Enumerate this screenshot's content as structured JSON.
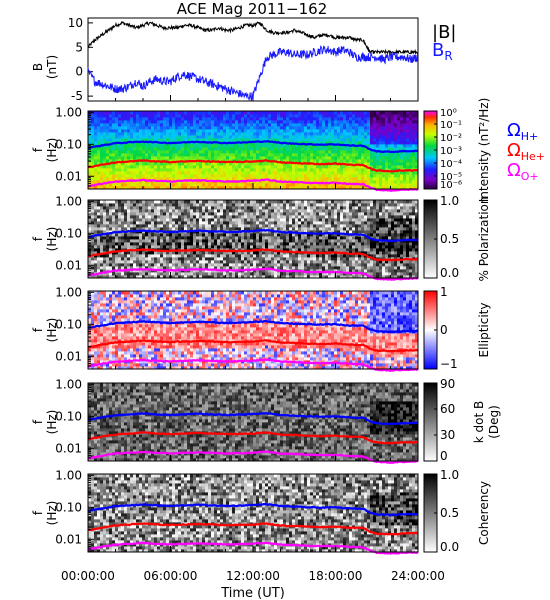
{
  "chart_data": {
    "type": "spectrogram-stack",
    "title": "ACE Mag 2011−162",
    "xlabel": "Time (UT)",
    "x_ticks": [
      "00:00:00",
      "06:00:00",
      "12:00:00",
      "18:00:00",
      "24:00:00"
    ],
    "x_range_hours": [
      0,
      24
    ],
    "field_panel": {
      "ylabel": "B",
      "yunit": "(nT)",
      "ylim": [
        -6,
        11
      ],
      "y_ticks": [
        -5,
        0,
        5,
        10
      ],
      "legend": [
        {
          "label": "|B|",
          "color": "#000000"
        },
        {
          "label": "B",
          "sub": "R",
          "color": "#1a1aff"
        }
      ],
      "series": [
        {
          "name": "|B|",
          "color": "#000000",
          "x": [
            0,
            0.5,
            1,
            1.5,
            2,
            2.5,
            3,
            3.5,
            4,
            4.5,
            5,
            5.5,
            6,
            6.5,
            7,
            7.5,
            8,
            8.5,
            9,
            9.5,
            10,
            10.5,
            11,
            11.5,
            12,
            12.5,
            13,
            13.5,
            14,
            14.5,
            15,
            15.5,
            16,
            16.5,
            17,
            17.5,
            18,
            18.5,
            19,
            19.5,
            20,
            20.3,
            20.5,
            21,
            21.5,
            22,
            22.5,
            23,
            23.5,
            24
          ],
          "y": [
            5,
            6.5,
            7.5,
            8.5,
            9.5,
            10,
            9.5,
            9,
            9.5,
            10,
            9.5,
            9,
            9,
            9,
            9.5,
            9.5,
            9,
            8.5,
            8.5,
            9,
            8.5,
            8.5,
            9,
            9.5,
            9.5,
            10,
            8.5,
            8,
            8,
            8,
            8.5,
            8,
            7.5,
            7,
            7.5,
            7.5,
            7,
            7,
            7,
            6.5,
            6.5,
            5,
            4,
            4,
            4,
            4,
            4,
            4,
            4,
            4
          ]
        },
        {
          "name": "B_R",
          "color": "#1a1aff",
          "x": [
            0,
            0.5,
            1,
            1.5,
            2,
            2.5,
            3,
            3.5,
            4,
            4.5,
            5,
            5.5,
            6,
            6.5,
            7,
            7.5,
            8,
            8.5,
            9,
            9.5,
            10,
            10.5,
            11,
            11.5,
            12,
            12.5,
            13,
            13.5,
            14,
            14.5,
            15,
            15.5,
            16,
            16.5,
            17,
            17.5,
            18,
            18.5,
            19,
            19.5,
            20,
            20.5,
            21,
            21.5,
            22,
            22.5,
            23,
            23.5,
            24
          ],
          "y": [
            0,
            -2,
            -2.5,
            -3,
            -3.5,
            -3.5,
            -3,
            -2,
            -3,
            -2,
            -1.5,
            -2,
            -2,
            -1,
            -0.5,
            -1,
            -1.5,
            -2,
            -2.5,
            -3,
            -3.5,
            -4,
            -4.5,
            -5,
            -5,
            -1,
            3,
            3.5,
            4,
            4,
            3.5,
            3.5,
            3.5,
            4,
            4.5,
            4.5,
            4,
            4.5,
            4,
            3,
            3,
            3,
            3,
            2.5,
            3,
            3,
            3,
            2.5,
            3
          ]
        }
      ]
    },
    "spectral_panels": [
      {
        "name": "Intensity",
        "colorbar_label": "Intensity (nT²/Hz)",
        "colorbar_ticks": [
          "10⁰",
          "10⁻¹",
          "10⁻²",
          "10⁻³",
          "10⁻⁴",
          "10⁻⁵",
          "10⁻⁶"
        ],
        "colormap": "rainbow"
      },
      {
        "name": "% Polarization",
        "colorbar_label": "% Polarization",
        "colorbar_ticks": [
          "1.0",
          "0.5",
          "0.0"
        ],
        "colormap": "gray"
      },
      {
        "name": "Ellipticity",
        "colorbar_label": "Ellipticity",
        "colorbar_ticks": [
          "1",
          "0",
          "−1"
        ],
        "colormap": "red-white-blue"
      },
      {
        "name": "k dot B",
        "colorbar_label": "k dot B",
        "colorbar_unit": "(Deg)",
        "colorbar_ticks": [
          "90",
          "60",
          "30",
          "0"
        ],
        "colormap": "gray"
      },
      {
        "name": "Coherency",
        "colorbar_label": "Coherency",
        "colorbar_ticks": [
          "1.0",
          "0.5",
          "0.0"
        ],
        "colormap": "gray"
      }
    ],
    "spectral_ylabel": "f",
    "spectral_yunit": "(Hz)",
    "spectral_ylim_hz": [
      0.004,
      1.1
    ],
    "spectral_y_ticks": [
      "1.00",
      "0.10",
      "0.01"
    ],
    "gyro_legend": [
      {
        "sym": "Ω",
        "sub": "H+",
        "color": "#0000ff"
      },
      {
        "sym": "Ω",
        "sub": "He+",
        "color": "#ff0000"
      },
      {
        "sym": "Ω",
        "sub": "O+",
        "color": "#ff00ff"
      }
    ],
    "gyro_series": [
      {
        "name": "H+",
        "color": "#0000ff",
        "x": [
          0,
          1,
          2,
          3,
          4,
          5,
          6,
          7,
          8,
          9,
          10,
          11,
          12,
          13,
          14,
          15,
          16,
          17,
          18,
          19,
          20,
          20.5,
          21,
          22,
          23,
          24
        ],
        "y": [
          0.077,
          0.092,
          0.108,
          0.115,
          0.122,
          0.115,
          0.11,
          0.115,
          0.12,
          0.115,
          0.11,
          0.113,
          0.118,
          0.125,
          0.11,
          0.105,
          0.1,
          0.098,
          0.1,
          0.092,
          0.09,
          0.07,
          0.06,
          0.058,
          0.061,
          0.062
        ]
      },
      {
        "name": "He+",
        "color": "#ff0000",
        "x": [
          0,
          1,
          2,
          3,
          4,
          5,
          6,
          7,
          8,
          9,
          10,
          11,
          12,
          13,
          14,
          15,
          16,
          17,
          18,
          19,
          20,
          20.5,
          21,
          22,
          23,
          24
        ],
        "y": [
          0.019,
          0.023,
          0.027,
          0.029,
          0.031,
          0.029,
          0.028,
          0.029,
          0.03,
          0.029,
          0.028,
          0.028,
          0.029,
          0.031,
          0.027,
          0.026,
          0.025,
          0.024,
          0.025,
          0.023,
          0.0225,
          0.0175,
          0.015,
          0.0145,
          0.0152,
          0.0155
        ]
      },
      {
        "name": "O+",
        "color": "#ff00ff",
        "x": [
          0,
          1,
          2,
          3,
          4,
          5,
          6,
          7,
          8,
          9,
          10,
          11,
          12,
          13,
          14,
          15,
          16,
          17,
          18,
          19,
          20,
          20.5,
          21,
          22,
          23,
          24
        ],
        "y": [
          0.0048,
          0.0058,
          0.0068,
          0.0072,
          0.0076,
          0.0072,
          0.0069,
          0.0072,
          0.0075,
          0.0072,
          0.0069,
          0.007,
          0.0073,
          0.0078,
          0.0068,
          0.0066,
          0.0062,
          0.0061,
          0.0062,
          0.0058,
          0.0056,
          0.0044,
          0.0038,
          0.0036,
          0.0038,
          0.0039
        ]
      }
    ]
  }
}
